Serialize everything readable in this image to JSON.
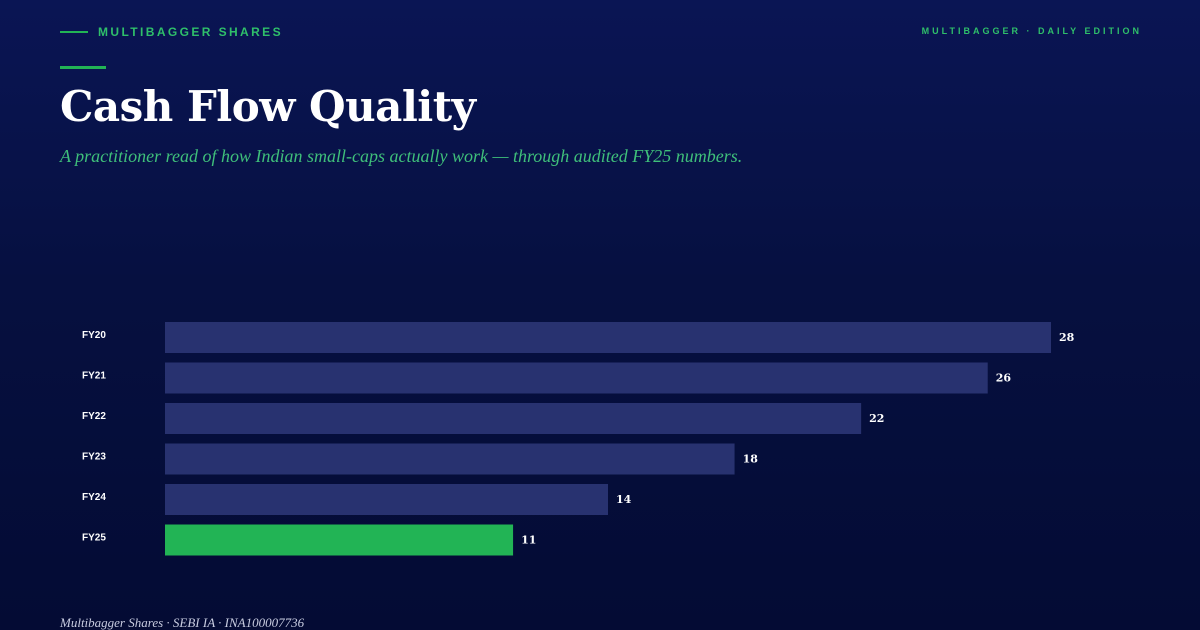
{
  "header": {
    "brand": "MULTIBAGGER SHARES",
    "edition": "MULTIBAGGER · DAILY EDITION",
    "title": "Cash Flow Quality",
    "subtitle": "A practitioner read of how Indian small-caps actually work — through audited FY25 numbers."
  },
  "footer": {
    "text": "Multibagger Shares · SEBI IA · INA100007736"
  },
  "colors": {
    "background": "#061040",
    "accent": "#22b455",
    "bar": "#283270",
    "highlight_bar": "#22b455"
  },
  "chart_data": {
    "type": "bar",
    "orientation": "horizontal",
    "categories": [
      "FY20",
      "FY21",
      "FY22",
      "FY23",
      "FY24",
      "FY25"
    ],
    "values": [
      28,
      26,
      22,
      18,
      14,
      11
    ],
    "highlight": "FY25",
    "title": "",
    "xlabel": "",
    "ylabel": "",
    "xlim": [
      0,
      28
    ],
    "grid": false
  }
}
